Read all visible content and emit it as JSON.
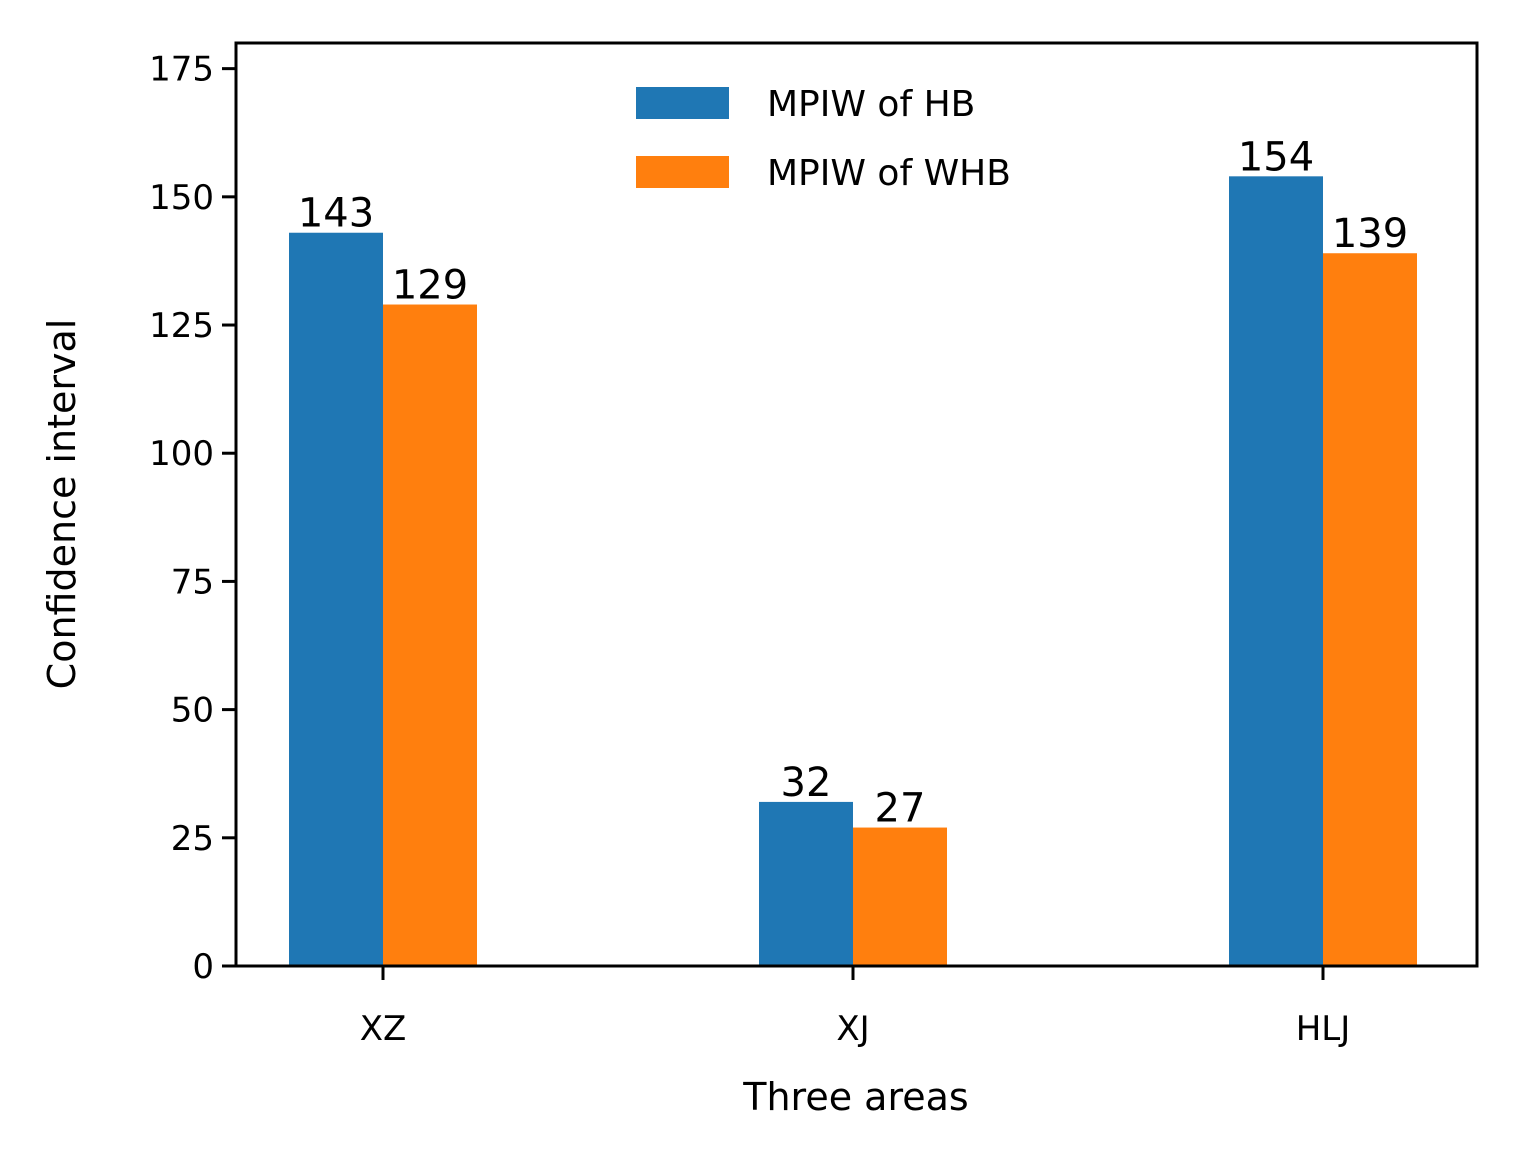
{
  "chart_data": {
    "type": "bar",
    "title": "",
    "xlabel": "Three areas",
    "ylabel": "Confidence interval",
    "categories": [
      "XZ",
      "XJ",
      "HLJ"
    ],
    "series": [
      {
        "name": "MPIW of HB",
        "values": [
          143,
          32,
          154
        ],
        "color": "#1f77b4"
      },
      {
        "name": "MPIW of WHB",
        "values": [
          129,
          27,
          139
        ],
        "color": "#ff7f0e"
      }
    ],
    "ylim": [
      0,
      180
    ],
    "yticks": [
      0,
      25,
      50,
      75,
      100,
      125,
      150,
      175
    ],
    "grid": false,
    "legend_position": "top-center",
    "data_labels": true
  }
}
